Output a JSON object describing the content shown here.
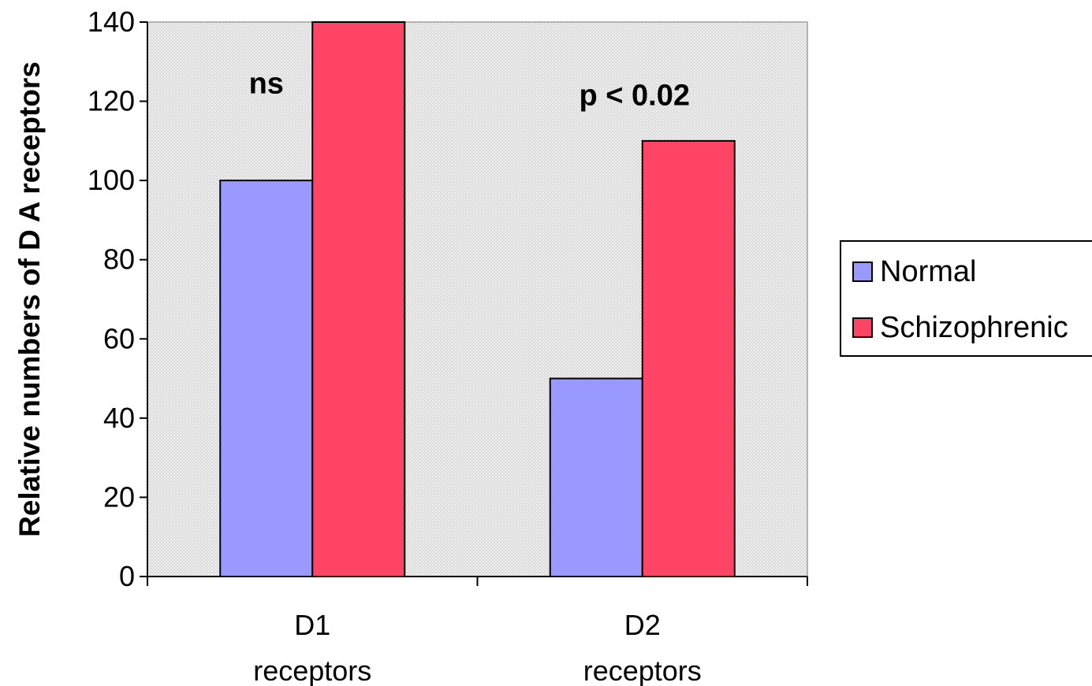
{
  "chart_data": {
    "type": "bar",
    "title": "",
    "xlabel": "",
    "ylabel": "Relative numbers of D A receptors",
    "ylim": [
      0,
      140
    ],
    "yticks": [
      0,
      20,
      40,
      60,
      80,
      100,
      120,
      140
    ],
    "categories": [
      {
        "line1": "D1",
        "line2": "receptors"
      },
      {
        "line1": "D2",
        "line2": "receptors"
      }
    ],
    "series": [
      {
        "name": "Normal",
        "color": "#9999ff",
        "values": [
          100,
          50
        ]
      },
      {
        "name": "Schizophrenic",
        "color": "#ff4466",
        "values": [
          140,
          110
        ]
      }
    ],
    "annotations": [
      {
        "text": "ns",
        "category": 0,
        "y": 122
      },
      {
        "text": "p < 0.02",
        "category": 1,
        "y": 119
      }
    ],
    "grid": false,
    "plot_background": "#e0e0e0",
    "legend_position": "right"
  }
}
